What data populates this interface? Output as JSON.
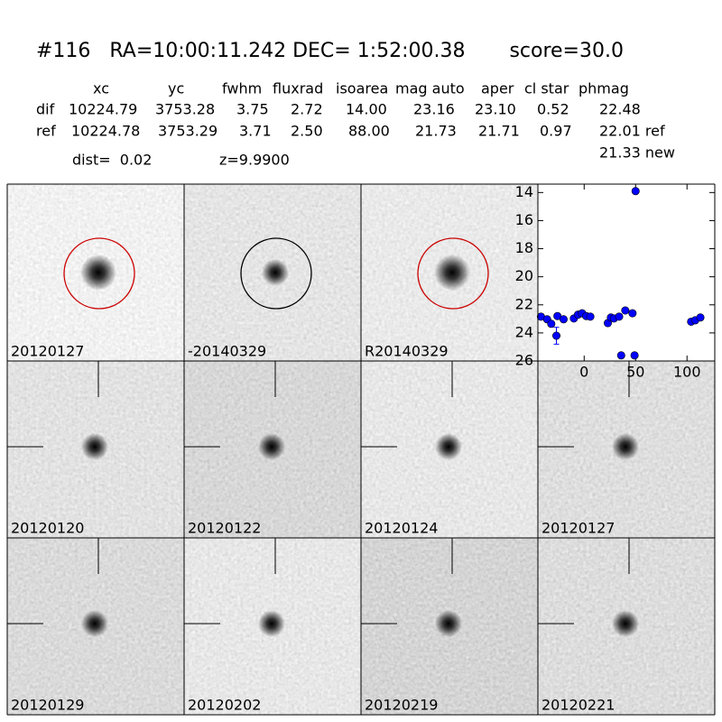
{
  "header": {
    "title": "#116   RA=10:00:11.242 DEC= 1:52:00.38       score=30.0"
  },
  "table": {
    "columns": [
      "xc",
      "yc",
      "fwhm",
      "fluxrad",
      "isoarea",
      "mag auto",
      "aper",
      "cl star",
      "phmag"
    ],
    "rows": [
      {
        "label": "dif",
        "cells": [
          "10224.79",
          "3753.28",
          "3.75",
          "2.72",
          "14.00",
          "23.16",
          "23.10",
          "0.52",
          "22.48"
        ]
      },
      {
        "label": "ref",
        "cells": [
          "10224.78",
          "3753.29",
          "3.71",
          "2.50",
          "88.00",
          "21.73",
          "21.71",
          "0.97",
          "22.01 ref"
        ]
      }
    ],
    "extra": "21.33 new"
  },
  "info": {
    "dist": "dist=  0.02",
    "z": "z=9.9900"
  },
  "panels": [
    {
      "label": "20120127"
    },
    {
      "label": "-20140329"
    },
    {
      "label": "R20140329"
    },
    {
      "label": "20120120"
    },
    {
      "label": "20120122"
    },
    {
      "label": "20120124"
    },
    {
      "label": "20120127"
    },
    {
      "label": "20120129"
    },
    {
      "label": "20120202"
    },
    {
      "label": "20120219"
    },
    {
      "label": "20120221"
    }
  ],
  "chart_data": {
    "type": "scatter",
    "x": [
      -42,
      -36,
      -32,
      -27,
      -26,
      -20,
      -10,
      -6,
      -2,
      2,
      6,
      23,
      26,
      29,
      34,
      36,
      40,
      47,
      49,
      50,
      104,
      108,
      113
    ],
    "values": [
      22.84,
      23.03,
      23.35,
      24.2,
      22.8,
      23.03,
      22.97,
      22.7,
      22.6,
      22.8,
      22.84,
      23.3,
      22.9,
      22.97,
      22.84,
      25.6,
      22.4,
      22.6,
      25.6,
      13.9,
      23.2,
      23.1,
      22.9
    ],
    "errors": [
      0.1,
      0.1,
      0.15,
      0.6,
      0.1,
      0.1,
      0.1,
      0.1,
      0.1,
      0.1,
      0.1,
      0.2,
      0.15,
      0.1,
      0.1,
      0.1,
      0.1,
      0.1,
      0.1,
      0.05,
      0.15,
      0.1,
      0.1
    ],
    "color": "#0000ff",
    "xlim": [
      -45,
      127
    ],
    "ylim": [
      26,
      13.4
    ],
    "xticks": [
      0,
      50,
      100
    ],
    "yticks": [
      14,
      16,
      18,
      20,
      22,
      24,
      26
    ]
  }
}
